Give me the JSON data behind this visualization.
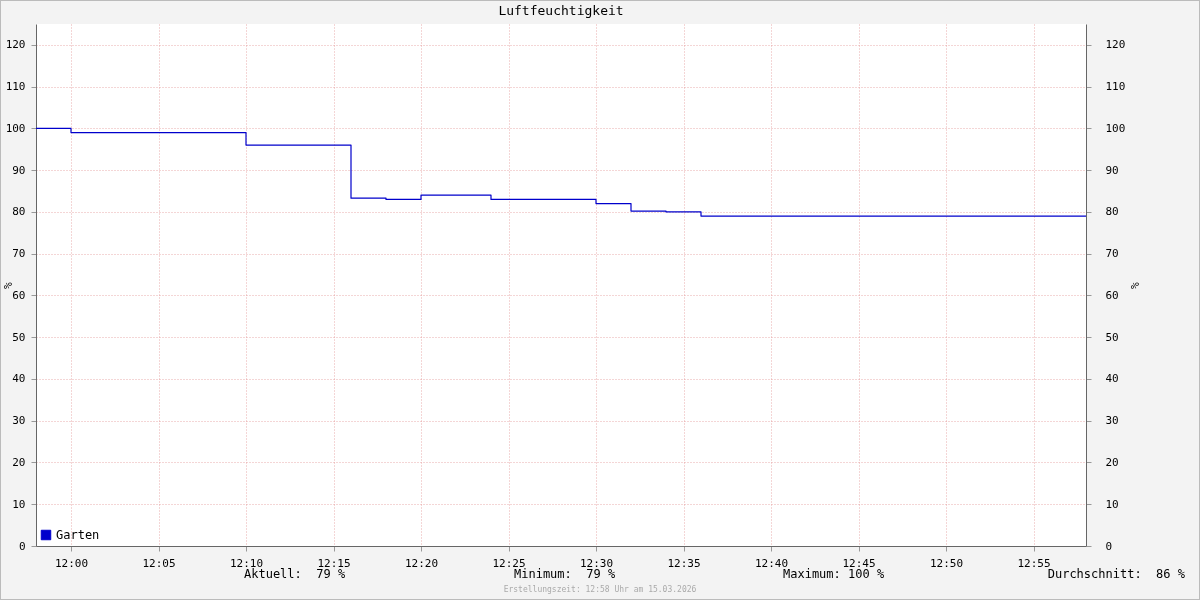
{
  "chart_data": {
    "type": "step",
    "title": "Luftfeuchtigkeit",
    "ylabel": "%",
    "y2label": "%",
    "x": [
      "2026-03-15T11:58",
      "2026-03-15T12:00",
      "2026-03-15T12:10",
      "2026-03-15T12:16",
      "2026-03-15T12:18",
      "2026-03-15T12:20",
      "2026-03-15T12:24",
      "2026-03-15T12:30",
      "2026-03-15T12:32",
      "2026-03-15T12:34",
      "2026-03-15T12:36",
      "2026-03-15T12:58"
    ],
    "series": [
      {
        "name": "Garten",
        "color": "#0000cc",
        "values": [
          100,
          99,
          96,
          83.3,
          83,
          84,
          83,
          82,
          80.2,
          80,
          79,
          79
        ]
      }
    ],
    "xlim": [
      "2026-03-15T11:58",
      "2026-03-15T12:58"
    ],
    "xticks": [
      {
        "value": "2026-03-15T12:00",
        "label": "12:00"
      },
      {
        "value": "2026-03-15T12:05",
        "label": "12:05"
      },
      {
        "value": "2026-03-15T12:10",
        "label": "12:10"
      },
      {
        "value": "2026-03-15T12:15",
        "label": "12:15"
      },
      {
        "value": "2026-03-15T12:20",
        "label": "12:20"
      },
      {
        "value": "2026-03-15T12:25",
        "label": "12:25"
      },
      {
        "value": "2026-03-15T12:30",
        "label": "12:30"
      },
      {
        "value": "2026-03-15T12:35",
        "label": "12:35"
      },
      {
        "value": "2026-03-15T12:40",
        "label": "12:40"
      },
      {
        "value": "2026-03-15T12:45",
        "label": "12:45"
      },
      {
        "value": "2026-03-15T12:50",
        "label": "12:50"
      },
      {
        "value": "2026-03-15T12:55",
        "label": "12:55"
      }
    ],
    "ylim": [
      0,
      125
    ],
    "yticks": [
      0,
      10,
      20,
      30,
      40,
      50,
      60,
      70,
      80,
      90,
      100,
      110,
      120
    ],
    "y2lim": [
      0,
      125
    ],
    "y2ticks": [
      0,
      10,
      20,
      30,
      40,
      50,
      60,
      70,
      80,
      90,
      100,
      110,
      120
    ],
    "grid": true,
    "legend": "bottom left",
    "line_style": "solid",
    "marker": "none",
    "annotations": [
      "Aktuell:  79 %",
      "Minimum:  79 %",
      "Maximum: 100 %",
      "Durchschnitt:  86 %",
      "Erstellungszeit: 12:58 Uhr am 15.03.2026"
    ]
  }
}
